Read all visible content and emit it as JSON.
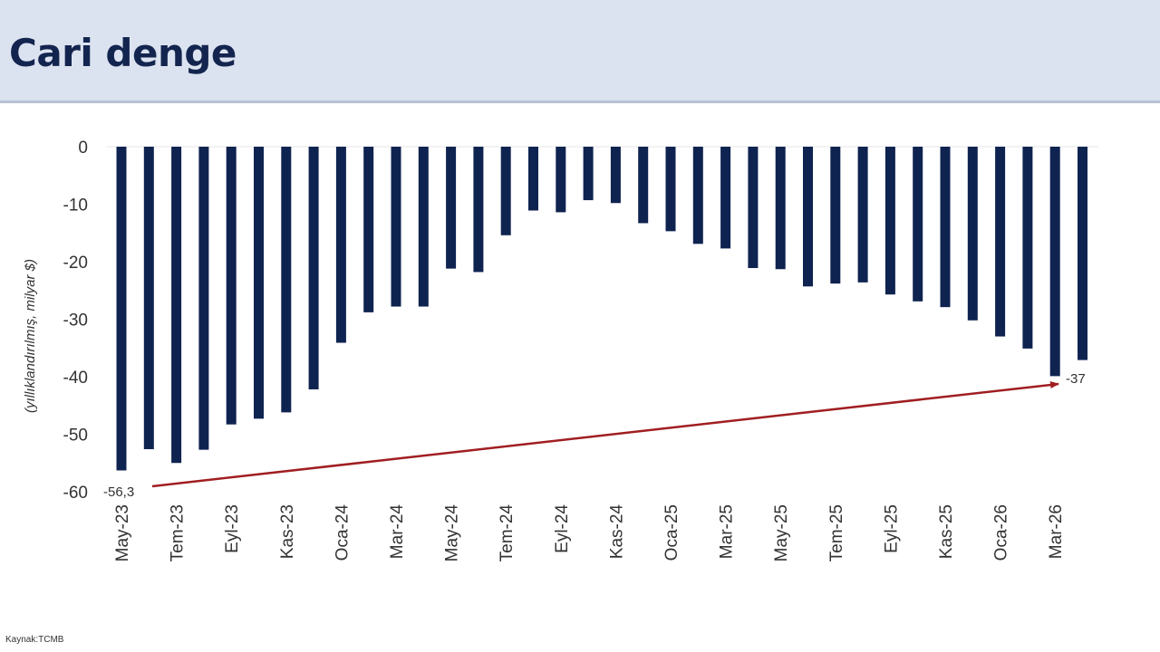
{
  "header": {
    "title": "Cari denge"
  },
  "footer": {
    "source": "Kaynak:TCMB"
  },
  "colors": {
    "bar": "#0f2350",
    "arrow": "#a01e22",
    "title_bg": "#dce3f0",
    "title_text": "#13254f"
  },
  "chart_data": {
    "type": "bar",
    "ylabel": "(yıllıklandırılmış, milyar $)",
    "ylim": [
      -60,
      0
    ],
    "yticks": [
      0,
      -10,
      -20,
      -30,
      -40,
      -50,
      -60
    ],
    "grid": false,
    "x": [
      "May-23",
      "Haz-23",
      "Tem-23",
      "Ağu-23",
      "Eyl-23",
      "Eki-23",
      "Kas-23",
      "Ara-23",
      "Oca-24",
      "Şub-24",
      "Mar-24",
      "Nis-24",
      "May-24",
      "Haz-24",
      "Tem-24",
      "Ağu-24",
      "Eyl-24",
      "Eki-24",
      "Kas-24",
      "Ara-24",
      "Oca-25",
      "Şub-25",
      "Mar-25",
      "Nis-25",
      "May-25",
      "Haz-25",
      "Tem-25",
      "Ağu-25",
      "Eyl-25",
      "Eki-25",
      "Kas-25",
      "Ara-25",
      "Oca-26",
      "Şub-26",
      "Mar-26",
      "Nis-26"
    ],
    "x_tick_labels": [
      "May-23",
      "Tem-23",
      "Eyl-23",
      "Kas-23",
      "Oca-24",
      "Mar-24",
      "May-24",
      "Tem-24",
      "Eyl-24",
      "Kas-24",
      "Oca-25",
      "Mar-25",
      "May-25",
      "Tem-25",
      "Eyl-25",
      "Kas-25",
      "Oca-26",
      "Mar-26"
    ],
    "values": [
      -56.3,
      -52.6,
      -55.0,
      -52.7,
      -48.3,
      -47.3,
      -46.2,
      -42.2,
      -34.1,
      -28.8,
      -27.8,
      -27.8,
      -21.2,
      -21.8,
      -15.4,
      -11.1,
      -11.4,
      -9.3,
      -9.8,
      -13.3,
      -14.7,
      -16.9,
      -17.7,
      -21.1,
      -21.3,
      -24.3,
      -23.8,
      -23.6,
      -25.7,
      -26.9,
      -27.9,
      -30.2,
      -33.0,
      -35.1,
      -39.9,
      -37.1
    ],
    "annotations": [
      {
        "text": "-56,3",
        "x": "May-23",
        "y": -56.3
      },
      {
        "text": "-37",
        "x": "Nis-26",
        "y": -37.1
      }
    ],
    "trend_arrow": {
      "from": {
        "x": "May-23",
        "y": -56.3
      },
      "to": {
        "x": "Nis-26",
        "y": -37.1
      }
    }
  }
}
